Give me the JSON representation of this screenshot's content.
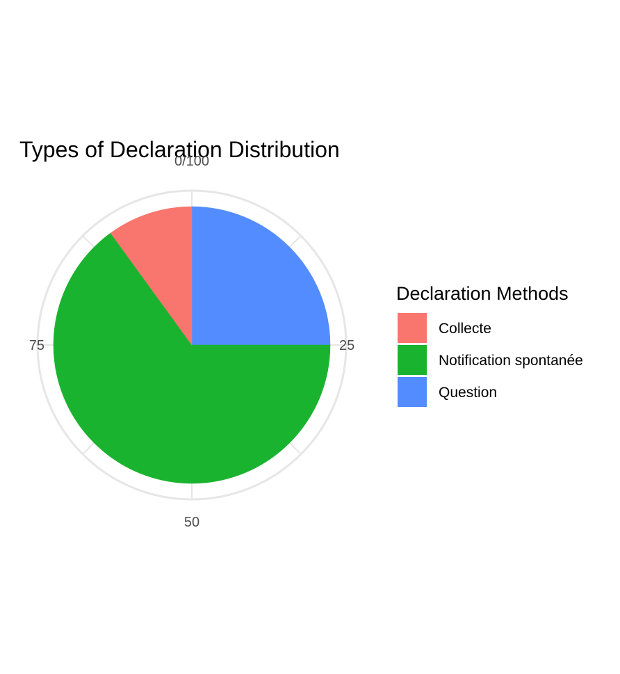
{
  "chart_data": {
    "type": "pie",
    "title": "Types of Declaration Distribution",
    "categories": [
      "Collecte",
      "Notification spontanée",
      "Question"
    ],
    "values": [
      10,
      65,
      25
    ],
    "colors": [
      "#F8766D",
      "#1AB32F",
      "#538CFF"
    ],
    "theta_ticks": [
      {
        "value": 0,
        "label": "0/100"
      },
      {
        "value": 25,
        "label": "25"
      },
      {
        "value": 50,
        "label": "50"
      },
      {
        "value": 75,
        "label": "75"
      }
    ],
    "legend": {
      "title": "Declaration Methods",
      "placement": "right"
    },
    "grid": true
  }
}
